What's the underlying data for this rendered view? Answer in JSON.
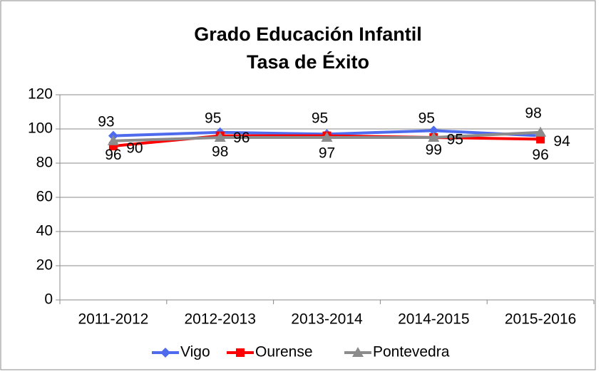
{
  "chart_data": {
    "type": "line",
    "title": "Grado Educación Infantil",
    "subtitle": "Tasa de Éxito",
    "categories": [
      "2011-2012",
      "2012-2013",
      "2013-2014",
      "2014-2015",
      "2015-2016"
    ],
    "series": [
      {
        "name": "Vigo",
        "color": "#4f6bed",
        "marker": "diamond",
        "values": [
          96,
          98,
          97,
          99,
          96
        ],
        "value_labels": [
          "96",
          "98",
          "97",
          "99",
          "96"
        ]
      },
      {
        "name": "Ourense",
        "color": "#ff0000",
        "marker": "square",
        "values": [
          90,
          96,
          96,
          95,
          94
        ],
        "value_labels": [
          "90",
          "96",
          null,
          "95",
          "94"
        ]
      },
      {
        "name": "Pontevedra",
        "color": "#8c8c8c",
        "marker": "triangle",
        "values": [
          93,
          95,
          95,
          95,
          98
        ],
        "value_labels": [
          "93",
          "95",
          "95",
          "95",
          "98"
        ]
      }
    ],
    "ylim": [
      0,
      120
    ],
    "yticks": [
      0,
      20,
      40,
      60,
      80,
      100,
      120
    ],
    "grid": true,
    "legend": "bottom"
  }
}
